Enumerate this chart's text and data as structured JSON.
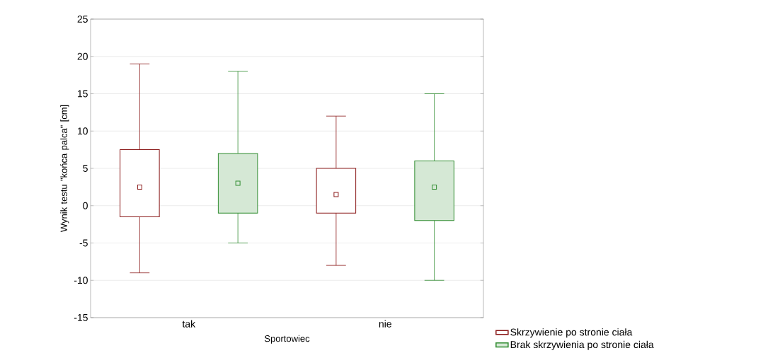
{
  "chart_data": {
    "type": "box",
    "xlabel": "Sportowiec",
    "ylabel": "Wynik testu \"końca palca\" [cm]",
    "categories": [
      "tak",
      "nie"
    ],
    "ylim": [
      -15,
      25
    ],
    "yticks": [
      -15,
      -10,
      -5,
      0,
      5,
      10,
      15,
      20,
      25
    ],
    "grid": "y",
    "legend": "bottom right",
    "marker": "square",
    "series": [
      {
        "name": "Skrzywienie po stronie ciała",
        "color": "#8b1a1a",
        "boxes": [
          {
            "low": -9,
            "q1": -1.5,
            "median": 2.5,
            "q3": 7.5,
            "high": 19
          },
          {
            "low": -8,
            "q1": -1,
            "median": 1.5,
            "q3": 5,
            "high": 12
          }
        ]
      },
      {
        "name": "Brak skrzywienia po stronie ciała",
        "color": "#2e8b2e",
        "boxes": [
          {
            "low": -5,
            "q1": -1,
            "median": 3,
            "q3": 7,
            "high": 18
          },
          {
            "low": -10,
            "q1": -2,
            "median": 2.5,
            "q3": 6,
            "high": 15
          }
        ]
      }
    ]
  }
}
